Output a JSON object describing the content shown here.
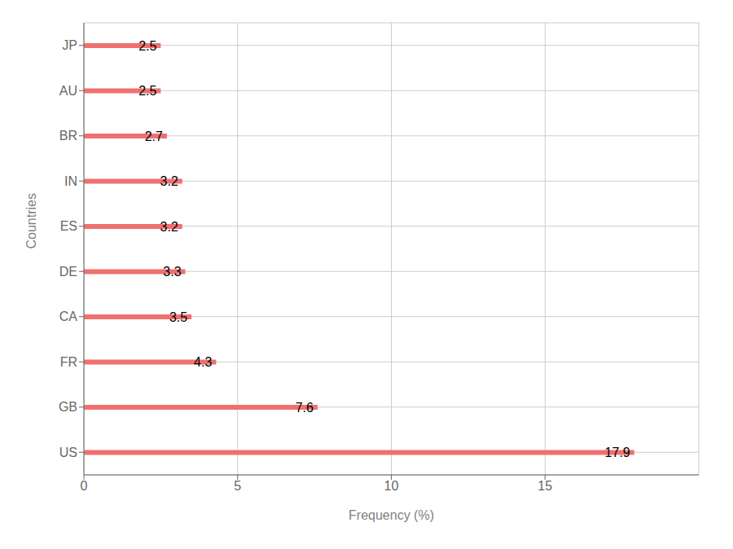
{
  "chart_data": {
    "type": "bar",
    "orientation": "horizontal",
    "categories": [
      "US",
      "GB",
      "FR",
      "CA",
      "DE",
      "ES",
      "IN",
      "BR",
      "AU",
      "JP"
    ],
    "values": [
      17.9,
      7.6,
      4.3,
      3.5,
      3.3,
      3.2,
      3.2,
      2.7,
      2.5,
      2.5
    ],
    "color": "#f07070",
    "xlabel": "Frequency (%)",
    "ylabel": "Countries",
    "xlim": [
      0,
      20
    ],
    "xticks": [
      0,
      5,
      10,
      15
    ],
    "grid": true,
    "data_labels": true
  }
}
